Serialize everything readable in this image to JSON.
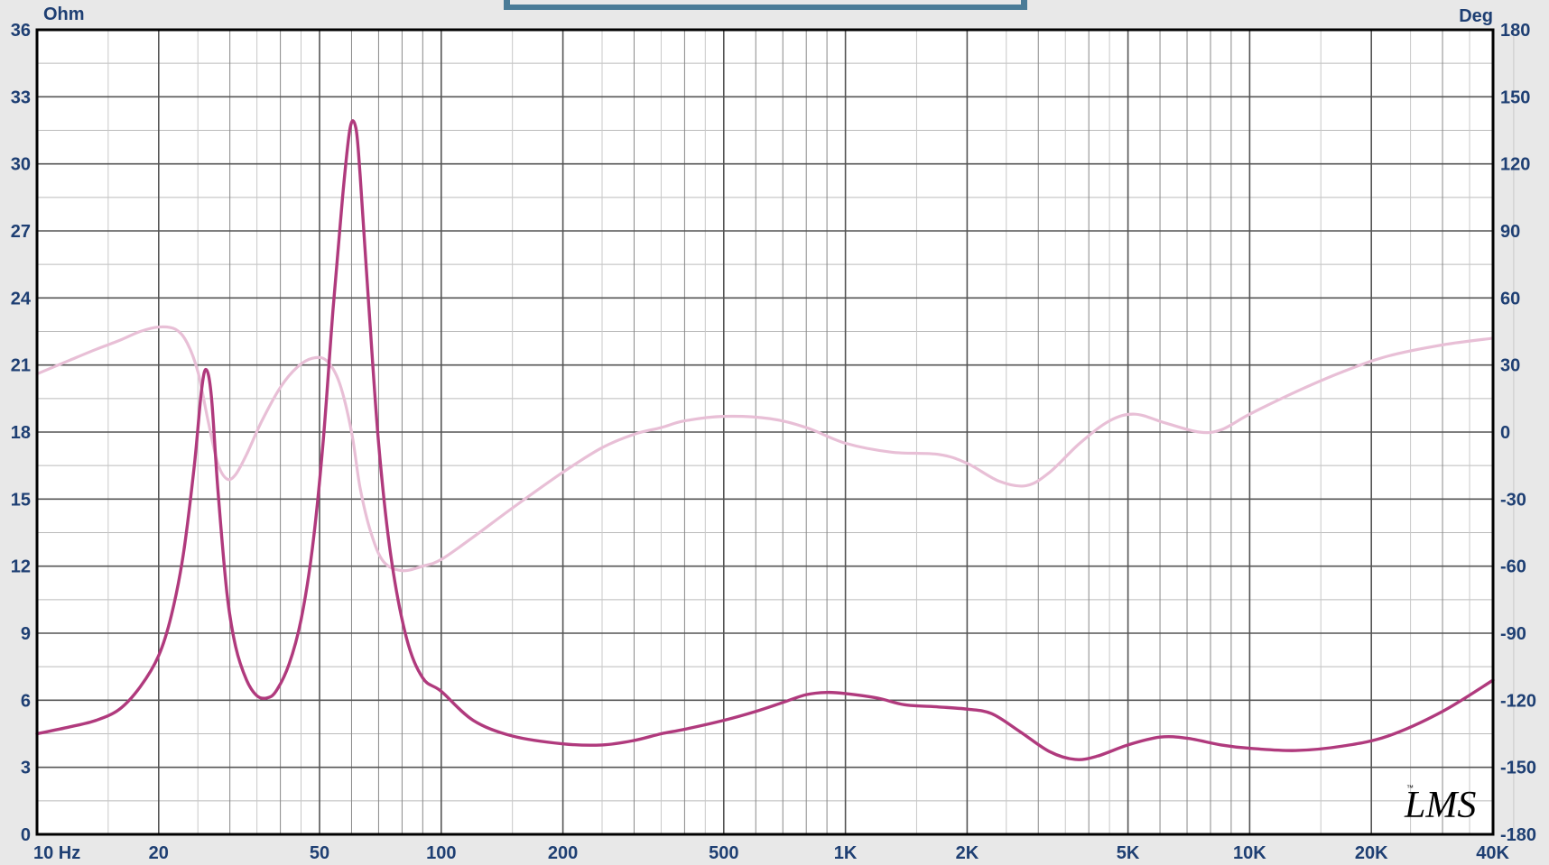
{
  "chart_data": {
    "type": "line",
    "title": "",
    "x_scale": "log",
    "xlim": [
      10,
      40000
    ],
    "y_left": {
      "unit_label": "Ohm",
      "ylim": [
        0,
        36
      ],
      "ticks": [
        "0",
        "3",
        "6",
        "9",
        "12",
        "15",
        "18",
        "21",
        "24",
        "27",
        "30",
        "33",
        "36"
      ]
    },
    "y_right": {
      "unit_label": "Deg",
      "ylim": [
        -180,
        180
      ],
      "ticks": [
        "-180",
        "-150",
        "-120",
        "-90",
        "-60",
        "-30",
        "0",
        "30",
        "60",
        "90",
        "120",
        "150",
        "180"
      ]
    },
    "x_ticks": [
      {
        "value": 10,
        "label": "10  Hz"
      },
      {
        "value": 20,
        "label": "20"
      },
      {
        "value": 50,
        "label": "50"
      },
      {
        "value": 100,
        "label": "100"
      },
      {
        "value": 200,
        "label": "200"
      },
      {
        "value": 500,
        "label": "500"
      },
      {
        "value": 1000,
        "label": "1K"
      },
      {
        "value": 2000,
        "label": "2K"
      },
      {
        "value": 5000,
        "label": "5K"
      },
      {
        "value": 10000,
        "label": "10K"
      },
      {
        "value": 20000,
        "label": "20K"
      },
      {
        "value": 40000,
        "label": "40K"
      }
    ],
    "grid": true,
    "watermark": "LMS",
    "watermark_tm": "™",
    "series": [
      {
        "key": "impedance",
        "axis": "left",
        "color": "#b03a7d",
        "points": [
          [
            10,
            4.5
          ],
          [
            12,
            4.8
          ],
          [
            14,
            5.1
          ],
          [
            16,
            5.6
          ],
          [
            18,
            6.6
          ],
          [
            20,
            8.0
          ],
          [
            21.5,
            9.8
          ],
          [
            23,
            12.5
          ],
          [
            24.5,
            16.5
          ],
          [
            25.5,
            19.8
          ],
          [
            26.2,
            20.8
          ],
          [
            27,
            19.6
          ],
          [
            28,
            15.5
          ],
          [
            29.5,
            10.8
          ],
          [
            31,
            8.4
          ],
          [
            33,
            6.9
          ],
          [
            35,
            6.2
          ],
          [
            37,
            6.1
          ],
          [
            39,
            6.4
          ],
          [
            42,
            7.6
          ],
          [
            45,
            9.6
          ],
          [
            48,
            12.8
          ],
          [
            51,
            17.5
          ],
          [
            54,
            23.5
          ],
          [
            57,
            28.5
          ],
          [
            59.5,
            31.6
          ],
          [
            61.5,
            31.6
          ],
          [
            63,
            29.5
          ],
          [
            66,
            24.0
          ],
          [
            70,
            17.5
          ],
          [
            75,
            12.5
          ],
          [
            82,
            8.8
          ],
          [
            90,
            7.0
          ],
          [
            100,
            6.4
          ],
          [
            120,
            5.1
          ],
          [
            150,
            4.4
          ],
          [
            200,
            4.05
          ],
          [
            250,
            4.0
          ],
          [
            300,
            4.2
          ],
          [
            350,
            4.5
          ],
          [
            400,
            4.7
          ],
          [
            500,
            5.1
          ],
          [
            600,
            5.5
          ],
          [
            700,
            5.9
          ],
          [
            800,
            6.25
          ],
          [
            900,
            6.35
          ],
          [
            1000,
            6.3
          ],
          [
            1200,
            6.1
          ],
          [
            1400,
            5.8
          ],
          [
            1700,
            5.7
          ],
          [
            2000,
            5.6
          ],
          [
            2300,
            5.4
          ],
          [
            2700,
            4.6
          ],
          [
            3200,
            3.7
          ],
          [
            3700,
            3.35
          ],
          [
            4200,
            3.5
          ],
          [
            5000,
            4.0
          ],
          [
            6000,
            4.35
          ],
          [
            7000,
            4.3
          ],
          [
            8500,
            4.0
          ],
          [
            10000,
            3.85
          ],
          [
            13000,
            3.75
          ],
          [
            17000,
            3.95
          ],
          [
            22000,
            4.4
          ],
          [
            30000,
            5.5
          ],
          [
            40000,
            6.9
          ]
        ]
      },
      {
        "key": "phase",
        "axis": "right",
        "color": "#e8bfd6",
        "points": [
          [
            10,
            26
          ],
          [
            12,
            32
          ],
          [
            14,
            37
          ],
          [
            16,
            41
          ],
          [
            18,
            45
          ],
          [
            20,
            47
          ],
          [
            22,
            46
          ],
          [
            23.5,
            40
          ],
          [
            25,
            27
          ],
          [
            26.5,
            5
          ],
          [
            28,
            -14
          ],
          [
            29.5,
            -21
          ],
          [
            31,
            -19
          ],
          [
            33,
            -10
          ],
          [
            36,
            5
          ],
          [
            40,
            20
          ],
          [
            44,
            29
          ],
          [
            48,
            33
          ],
          [
            52,
            32
          ],
          [
            56,
            22
          ],
          [
            60,
            0
          ],
          [
            63,
            -25
          ],
          [
            67,
            -45
          ],
          [
            72,
            -58
          ],
          [
            80,
            -62
          ],
          [
            90,
            -60
          ],
          [
            100,
            -57
          ],
          [
            120,
            -47
          ],
          [
            150,
            -34
          ],
          [
            200,
            -18
          ],
          [
            250,
            -7
          ],
          [
            300,
            -1
          ],
          [
            350,
            2
          ],
          [
            400,
            5
          ],
          [
            500,
            7
          ],
          [
            650,
            6
          ],
          [
            800,
            2
          ],
          [
            1000,
            -5
          ],
          [
            1300,
            -9
          ],
          [
            1700,
            -10
          ],
          [
            2000,
            -14
          ],
          [
            2400,
            -22
          ],
          [
            2800,
            -24
          ],
          [
            3200,
            -18
          ],
          [
            3800,
            -5
          ],
          [
            4500,
            5
          ],
          [
            5200,
            8
          ],
          [
            6200,
            4
          ],
          [
            7500,
            0
          ],
          [
            8500,
            1
          ],
          [
            10000,
            8
          ],
          [
            13000,
            18
          ],
          [
            17000,
            27
          ],
          [
            22000,
            34
          ],
          [
            30000,
            39
          ],
          [
            40000,
            42
          ]
        ]
      }
    ]
  }
}
